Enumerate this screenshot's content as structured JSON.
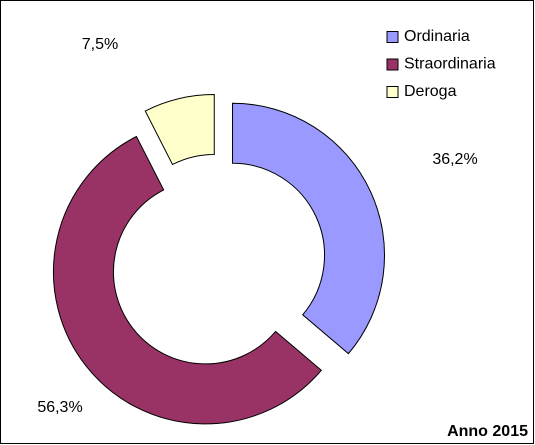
{
  "chart_data": {
    "type": "donut",
    "categories": [
      "Ordinaria",
      "Straordinaria",
      "Deroga"
    ],
    "values": [
      36.2,
      56.3,
      7.5
    ],
    "value_labels": [
      "36,2%",
      "56,3%",
      "7,5%"
    ],
    "colors": [
      "#9999ff",
      "#993366",
      "#ffffcc"
    ],
    "annotation": "Anno 2015",
    "legend": "top-right"
  }
}
